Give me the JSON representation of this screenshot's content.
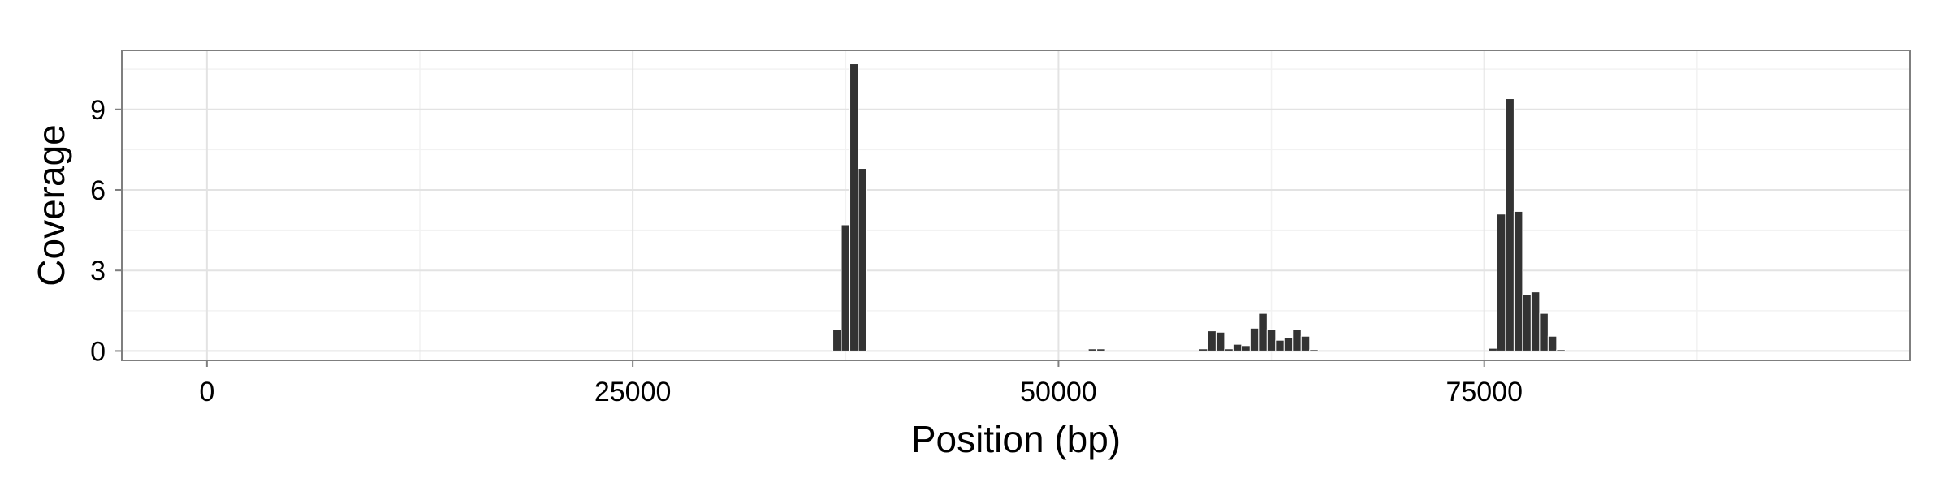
{
  "chart_data": {
    "type": "bar",
    "xlabel": "Position (bp)",
    "ylabel": "Coverage",
    "xlim": [
      -5000,
      100000
    ],
    "ylim": [
      -0.35,
      11.2
    ],
    "x_ticks": [
      0,
      25000,
      50000,
      75000
    ],
    "x_tick_labels": [
      "0",
      "25000",
      "50000",
      "75000"
    ],
    "y_ticks": [
      0,
      3,
      6,
      9
    ],
    "y_tick_labels": [
      "0",
      "3",
      "6",
      "9"
    ],
    "bin_width": 500,
    "grid": true,
    "bar_color": "#333333",
    "x": [
      37000,
      37500,
      38000,
      38500,
      52000,
      52500,
      58500,
      59000,
      59500,
      60000,
      60500,
      61000,
      61500,
      62000,
      62500,
      63000,
      63500,
      64000,
      64500,
      65000,
      75500,
      76000,
      76500,
      77000,
      77500,
      78000,
      78500,
      79000,
      79500
    ],
    "values": [
      0.8,
      4.7,
      10.7,
      6.8,
      0.08,
      0.08,
      0.08,
      0.75,
      0.7,
      0.08,
      0.25,
      0.2,
      0.85,
      1.4,
      0.8,
      0.4,
      0.5,
      0.8,
      0.55,
      0.05,
      0.1,
      5.1,
      9.4,
      5.2,
      2.1,
      2.2,
      1.4,
      0.55,
      0.05
    ]
  }
}
